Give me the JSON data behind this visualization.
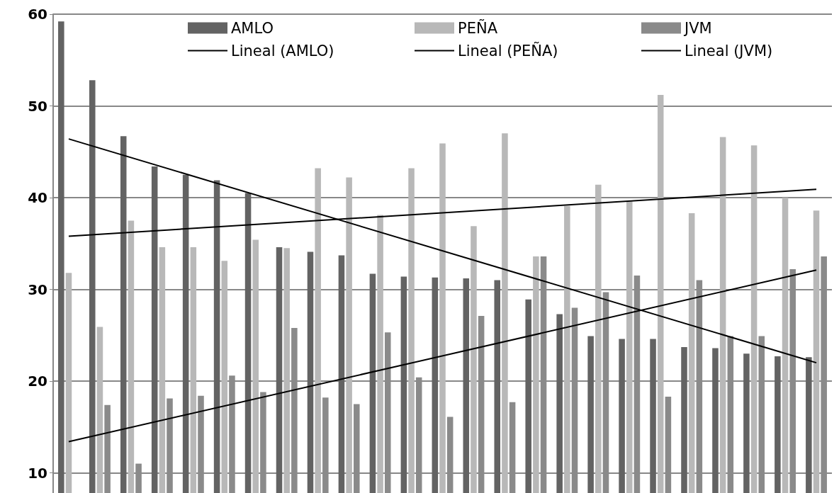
{
  "chart_data": {
    "type": "bar",
    "categories": [
      null,
      null,
      null,
      null,
      null,
      null,
      null,
      null,
      null,
      null,
      null,
      null,
      null,
      null,
      null,
      null,
      null,
      null,
      null,
      null,
      null,
      null,
      null,
      null,
      null
    ],
    "series": [
      {
        "name": "AMLO",
        "color": "#636363",
        "values": [
          59.2,
          52.8,
          46.7,
          43.4,
          42.5,
          41.9,
          40.5,
          34.6,
          34.1,
          33.7,
          31.7,
          31.4,
          31.3,
          31.2,
          31.0,
          28.9,
          27.3,
          24.9,
          24.6,
          24.6,
          23.7,
          23.6,
          23.0,
          22.7,
          22.6
        ]
      },
      {
        "name": "PEÑA",
        "color": "#b8b8b8",
        "values": [
          31.8,
          25.9,
          37.5,
          34.6,
          34.6,
          33.1,
          35.4,
          34.5,
          43.2,
          42.2,
          38.1,
          43.2,
          45.9,
          36.9,
          47.0,
          33.6,
          39.1,
          41.4,
          39.6,
          51.2,
          38.3,
          46.6,
          45.7,
          40.0,
          38.6
        ]
      },
      {
        "name": "JVM",
        "color": "#8a8a8a",
        "values": [
          null,
          17.4,
          11.0,
          18.1,
          18.4,
          20.6,
          18.8,
          25.8,
          18.2,
          17.5,
          25.3,
          20.4,
          16.1,
          27.1,
          17.7,
          33.6,
          28.0,
          29.7,
          31.5,
          18.3,
          31.0,
          24.9,
          24.9,
          32.2,
          33.6
        ]
      },
      {
        "name": "Lineal (AMLO)",
        "type": "line",
        "color": "#000000",
        "values": [
          46.4,
          null,
          null,
          null,
          null,
          null,
          null,
          null,
          null,
          null,
          null,
          null,
          null,
          null,
          null,
          null,
          null,
          null,
          null,
          null,
          null,
          null,
          null,
          null,
          22.0
        ]
      },
      {
        "name": "Lineal (PEÑA)",
        "type": "line",
        "color": "#000000",
        "values": [
          35.8,
          null,
          null,
          null,
          null,
          null,
          null,
          null,
          null,
          null,
          null,
          null,
          null,
          null,
          null,
          null,
          null,
          null,
          null,
          null,
          null,
          null,
          null,
          null,
          40.9
        ]
      },
      {
        "name": "Lineal (JVM)",
        "type": "line",
        "color": "#000000",
        "values": [
          13.4,
          null,
          null,
          null,
          null,
          null,
          null,
          null,
          null,
          null,
          null,
          null,
          null,
          null,
          null,
          null,
          null,
          null,
          null,
          null,
          null,
          null,
          null,
          null,
          32.1
        ]
      }
    ],
    "ylim": [
      7.8,
      60
    ],
    "yticks": [
      10,
      20,
      30,
      40,
      50,
      60
    ],
    "grid": "y",
    "legend": "top",
    "tick_labels": "y",
    "marker": "none",
    "line_style": "solid"
  }
}
